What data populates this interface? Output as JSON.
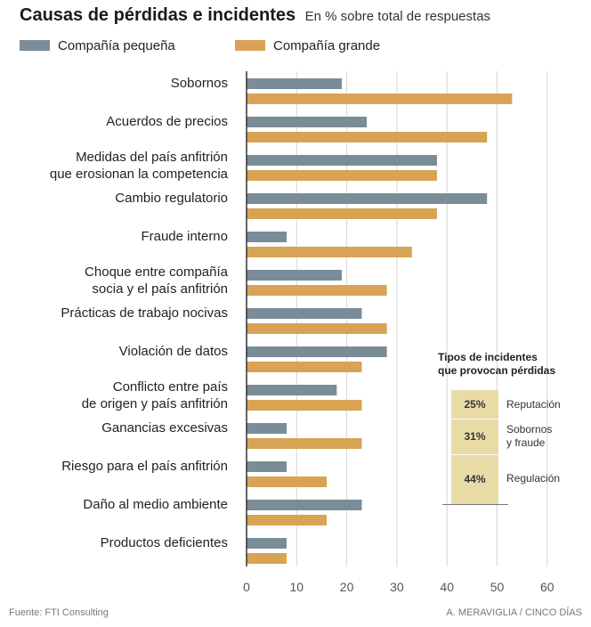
{
  "chart_data": {
    "type": "bar",
    "orientation": "horizontal",
    "title": "Causas de pérdidas e incidentes",
    "subtitle": "En % sobre total de respuestas",
    "categories": [
      "Sobornos",
      "Acuerdos de precios",
      "Medidas del país anfitrión\nque erosionan la competencia",
      "Cambio regulatorio",
      "Fraude interno",
      "Choque entre compañía\nsocia y el país anfitrión",
      "Prácticas de trabajo nocivas",
      "Violación de datos",
      "Conflicto entre país\nde origen y país anfitrión",
      "Ganancias excesivas",
      "Riesgo para el país anfitrión",
      "Daño al medio ambiente",
      "Productos deficientes"
    ],
    "series": [
      {
        "name": "Compañía pequeña",
        "color": "#7a8c97",
        "values": [
          19,
          24,
          38,
          48,
          8,
          19,
          23,
          28,
          18,
          8,
          8,
          23,
          8
        ]
      },
      {
        "name": "Compañía grande",
        "color": "#d8a354",
        "values": [
          53,
          48,
          38,
          38,
          33,
          28,
          28,
          23,
          23,
          23,
          16,
          16,
          8
        ]
      }
    ],
    "xlim": [
      0,
      60
    ],
    "xticks": [
      "0",
      "10",
      "20",
      "30",
      "40",
      "50",
      "60"
    ],
    "grid": true
  },
  "inset": {
    "title_line1": "Tipos de incidentes",
    "title_line2": "que provocan pérdidas",
    "items": [
      {
        "pct": "25%",
        "label": "Reputación",
        "value": 25
      },
      {
        "pct": "31%",
        "label": "Sobornos\ny fraude",
        "value": 31
      },
      {
        "pct": "44%",
        "label": "Regulación",
        "value": 44
      }
    ]
  },
  "footer": {
    "source": "Fuente: FTI Consulting",
    "credit": "A. MERAVIGLIA / CINCO DÍAS"
  }
}
